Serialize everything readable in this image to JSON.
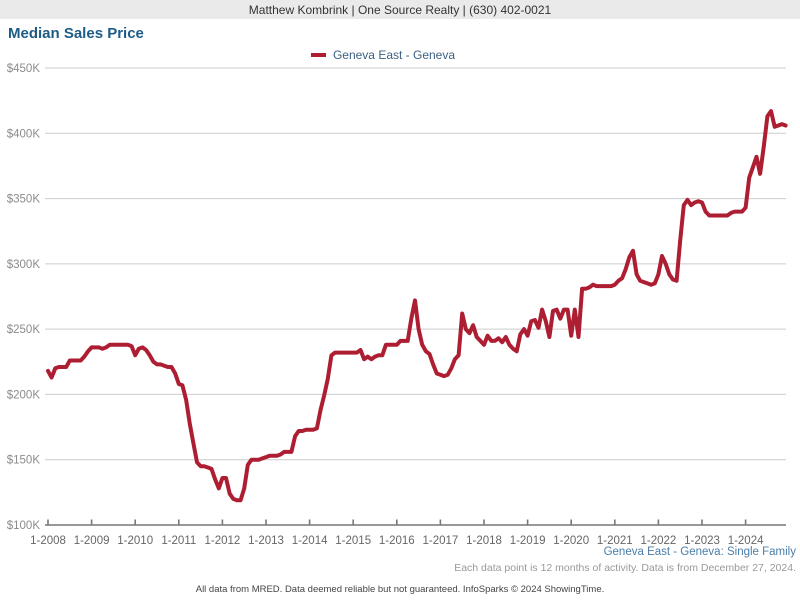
{
  "header": {
    "agent_info": "Matthew Kombrink | One Source Realty | (630) 402-0021"
  },
  "title": "Median Sales Price",
  "legend": {
    "series_label": "Geneva East - Geneva"
  },
  "footer": {
    "series_note": "Geneva East - Geneva: Single Family",
    "data_note": "Each data point is 12 months of activity. Data is from December 27, 2024.",
    "disclaimer": "All data from MRED. Data deemed reliable but not guaranteed. InfoSparks © 2024 ShowingTime."
  },
  "colors": {
    "line": "#ae1e32",
    "title_blue": "#1d5c87",
    "legend_blue": "#3d6185",
    "footer_blue": "#4a7ea8",
    "gridline": "#cccccc",
    "axis": "#777777",
    "y_label": "#8c8c8c",
    "x_label": "#666666",
    "header_bg": "#eaeaea"
  },
  "chart_data": {
    "type": "line",
    "title": "Median Sales Price",
    "grid": "horizontal",
    "legend_position": "top-center",
    "unit": "USD (thousands)",
    "ylim": [
      100,
      450
    ],
    "y_ticks": [
      100,
      150,
      200,
      250,
      300,
      350,
      400,
      450
    ],
    "y_tick_labels": [
      "$100K",
      "$150K",
      "$200K",
      "$250K",
      "$300K",
      "$350K",
      "$400K",
      "$450K"
    ],
    "x_tick_labels": [
      "1-2008",
      "1-2009",
      "1-2010",
      "1-2011",
      "1-2012",
      "1-2013",
      "1-2014",
      "1-2015",
      "1-2016",
      "1-2017",
      "1-2018",
      "1-2019",
      "1-2020",
      "1-2021",
      "1-2022",
      "1-2023",
      "1-2024"
    ],
    "x_start": "2008-01",
    "x_interval": "monthly",
    "series": [
      {
        "name": "Geneva East - Geneva",
        "color": "#ae1e32",
        "values": [
          218,
          213,
          220,
          221,
          221,
          221,
          226,
          226,
          226,
          226,
          229,
          233,
          236,
          236,
          236,
          235,
          236,
          238,
          238,
          238,
          238,
          238,
          238,
          237,
          230,
          235,
          236,
          234,
          230,
          225,
          223,
          223,
          222,
          221,
          221,
          216,
          208,
          207,
          196,
          178,
          163,
          148,
          145,
          145,
          144,
          143,
          135,
          128,
          136,
          136,
          124,
          120,
          119,
          119,
          128,
          146,
          150,
          150,
          150,
          151,
          152,
          153,
          153,
          153,
          154,
          156,
          156,
          156,
          168,
          172,
          172,
          173,
          173,
          173,
          174,
          188,
          199,
          212,
          230,
          232,
          232,
          232,
          232,
          232,
          232,
          232,
          234,
          227,
          229,
          227,
          229,
          230,
          230,
          238,
          238,
          238,
          238,
          241,
          241,
          241,
          258,
          272,
          250,
          238,
          233,
          231,
          223,
          216,
          215,
          214,
          215,
          220,
          227,
          230,
          262,
          250,
          247,
          253,
          244,
          241,
          238,
          245,
          241,
          241,
          243,
          240,
          244,
          238,
          235,
          233,
          246,
          250,
          245,
          256,
          257,
          251,
          265,
          256,
          244,
          264,
          265,
          258,
          265,
          265,
          245,
          265,
          244,
          281,
          281,
          282,
          284,
          283,
          283,
          283,
          283,
          283,
          284,
          287,
          289,
          296,
          305,
          310,
          292,
          287,
          286,
          285,
          284,
          285,
          292,
          306,
          300,
          292,
          288,
          287,
          318,
          345,
          349,
          345,
          347,
          348,
          347,
          340,
          337,
          337,
          337,
          337,
          337,
          337,
          339,
          340,
          340,
          340,
          343,
          366,
          374,
          382,
          369,
          390,
          413,
          417,
          405,
          406,
          407,
          406
        ]
      }
    ]
  }
}
